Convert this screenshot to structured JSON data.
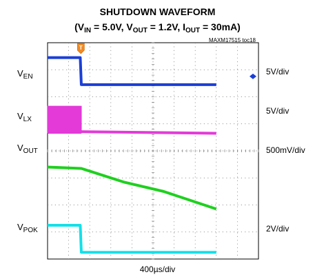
{
  "chart_data": {
    "type": "line",
    "title": "SHUTDOWN WAVEFORM",
    "subtitle": {
      "open": "(V",
      "vin_sub": "IN",
      "vin_val": " = 5.0V, V",
      "vout_sub": "OUT",
      "vout_val": " = 1.2V, I",
      "iout_sub": "OUT",
      "iout_val": " = 30mA)"
    },
    "figure_tag": "MAXM17515 toc18",
    "time_scale": "400µs/div",
    "x_divisions": 10,
    "y_divisions": 8,
    "trigger_marker": "T",
    "channels": [
      {
        "label_main": "V",
        "label_sub": "EN",
        "scale": "5V/div",
        "color": "#1b3fd6",
        "points_div": [
          [
            0,
            1.0
          ],
          [
            1.55,
            1.0
          ],
          [
            1.6,
            0.0
          ],
          [
            8.0,
            0.0
          ]
        ],
        "baseline_div": 1.55
      },
      {
        "label_main": "V",
        "label_sub": "LX",
        "scale": "5V/div",
        "color": "#e33ad8",
        "switching_end_div": 1.6,
        "high_div": 1.0,
        "points_div": [
          [
            1.6,
            0.06
          ],
          [
            8.0,
            0.0
          ]
        ],
        "baseline_div": 3.35
      },
      {
        "label_main": "V",
        "label_sub": "OUT",
        "scale": "500mV/div",
        "color": "#1fd01f",
        "points_div": [
          [
            0,
            0.0
          ],
          [
            1.6,
            -0.05
          ],
          [
            3.6,
            -0.55
          ],
          [
            5.5,
            -0.9
          ],
          [
            8.0,
            -1.55
          ]
        ],
        "baseline_div": 4.6
      },
      {
        "label_main": "V",
        "label_sub": "POK",
        "scale": "2V/div",
        "color": "#14e0e8",
        "points_div": [
          [
            0,
            1.0
          ],
          [
            1.55,
            1.0
          ],
          [
            1.6,
            0.0
          ],
          [
            8.0,
            0.0
          ]
        ],
        "baseline_div": 7.75
      }
    ],
    "grid": true
  }
}
